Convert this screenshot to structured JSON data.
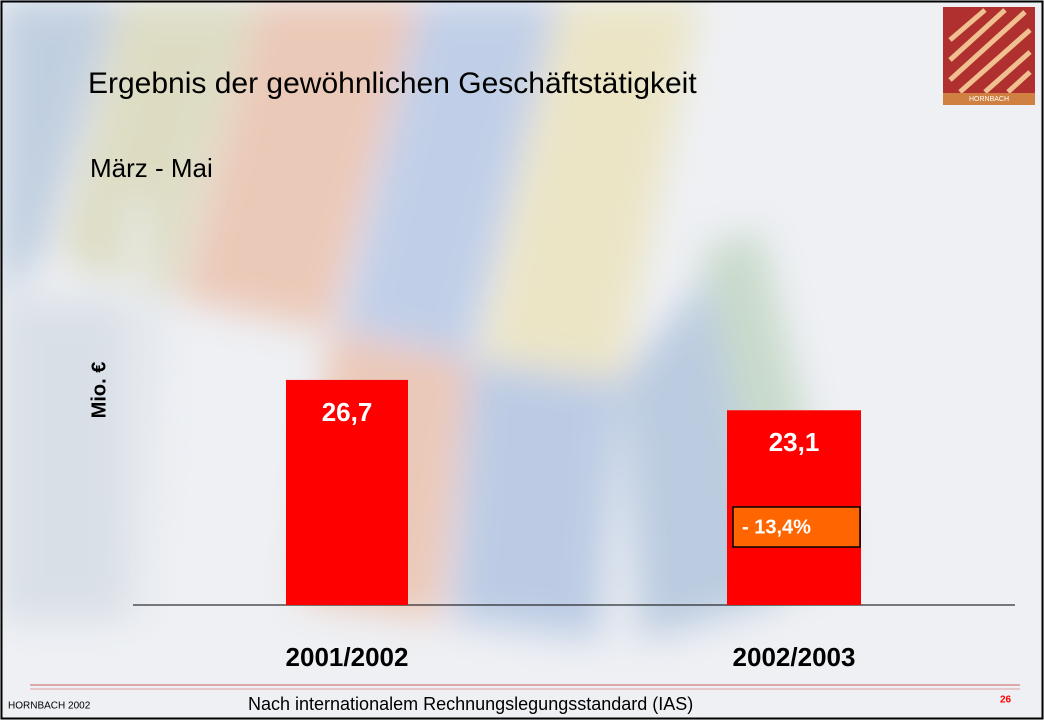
{
  "chart_data": {
    "type": "bar",
    "title": "Ergebnis der gewöhnlichen Geschäftstätigkeit",
    "subtitle": "März - Mai",
    "ylabel": "Mio. €",
    "categories": [
      "2001/2002",
      "2002/2003"
    ],
    "values": [
      26.7,
      23.1
    ],
    "value_labels": [
      "26,7",
      "23,1"
    ],
    "color": "#ff0000",
    "annotation": "- 13,4%"
  },
  "logo": "HORNBACH",
  "footer": {
    "left": "HORNBACH 2002",
    "center": "Nach internationalem Rechnungslegungsstandard (IAS)",
    "page_number": "26"
  }
}
